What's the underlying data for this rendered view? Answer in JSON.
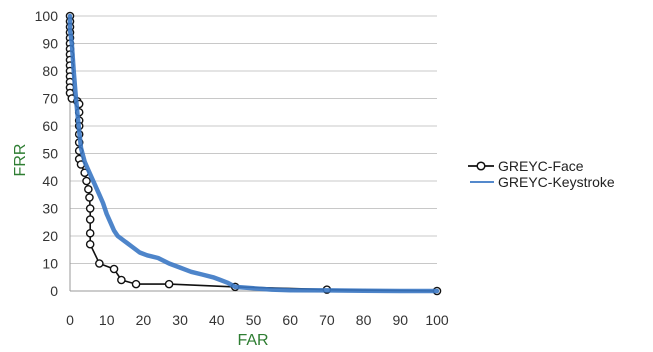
{
  "chart_data": {
    "type": "line",
    "title": "",
    "xlabel": "FAR",
    "ylabel": "FRR",
    "xlim": [
      0,
      100
    ],
    "ylim": [
      0,
      100
    ],
    "xticks": [
      0,
      10,
      20,
      30,
      40,
      50,
      60,
      70,
      80,
      90,
      100
    ],
    "yticks": [
      0,
      10,
      20,
      30,
      40,
      50,
      60,
      70,
      80,
      90,
      100
    ],
    "grid": "horizontal",
    "legend_position": "right",
    "series": [
      {
        "name": "GREYC-Face",
        "color": "#111111",
        "marker": "open-circle",
        "points": [
          [
            0,
            100
          ],
          [
            0,
            98
          ],
          [
            0,
            96
          ],
          [
            0,
            94
          ],
          [
            0,
            92
          ],
          [
            0,
            90
          ],
          [
            0,
            88
          ],
          [
            0,
            86
          ],
          [
            0,
            84
          ],
          [
            0,
            82
          ],
          [
            0,
            80
          ],
          [
            0,
            78
          ],
          [
            0,
            76
          ],
          [
            0,
            74
          ],
          [
            0,
            72
          ],
          [
            0.5,
            70
          ],
          [
            2,
            69
          ],
          [
            2.5,
            68
          ],
          [
            2.5,
            65
          ],
          [
            2.5,
            62
          ],
          [
            2.5,
            60
          ],
          [
            2.5,
            57
          ],
          [
            2.5,
            54
          ],
          [
            2.5,
            51
          ],
          [
            2.5,
            48
          ],
          [
            3,
            46
          ],
          [
            4,
            43
          ],
          [
            4.5,
            40
          ],
          [
            5,
            37
          ],
          [
            5.3,
            34
          ],
          [
            5.5,
            30
          ],
          [
            5.5,
            26
          ],
          [
            5.5,
            21
          ],
          [
            5.5,
            17
          ],
          [
            8,
            10
          ],
          [
            12,
            8
          ],
          [
            14,
            4
          ],
          [
            18,
            2.5
          ],
          [
            27,
            2.5
          ],
          [
            45,
            1.5
          ],
          [
            70,
            0.5
          ],
          [
            100,
            0
          ]
        ]
      },
      {
        "name": "GREYC-Keystroke",
        "color": "#3b78c4",
        "marker": "none",
        "points": [
          [
            0,
            100
          ],
          [
            0,
            95
          ],
          [
            0.5,
            90
          ],
          [
            1,
            80
          ],
          [
            1.5,
            72
          ],
          [
            2,
            65
          ],
          [
            2.5,
            58
          ],
          [
            3,
            52
          ],
          [
            4,
            47
          ],
          [
            5,
            44
          ],
          [
            6,
            41
          ],
          [
            7,
            38
          ],
          [
            8,
            35
          ],
          [
            9,
            32
          ],
          [
            10,
            28
          ],
          [
            11,
            25
          ],
          [
            12,
            22
          ],
          [
            13,
            20
          ],
          [
            15,
            18
          ],
          [
            17,
            16
          ],
          [
            19,
            14
          ],
          [
            21,
            13
          ],
          [
            24,
            12
          ],
          [
            27,
            10
          ],
          [
            30,
            8.5
          ],
          [
            33,
            7
          ],
          [
            36,
            6
          ],
          [
            39,
            5
          ],
          [
            41,
            4
          ],
          [
            43,
            3
          ],
          [
            45,
            1.5
          ],
          [
            50,
            1
          ],
          [
            55,
            0.5
          ],
          [
            60,
            0.3
          ],
          [
            70,
            0.2
          ],
          [
            80,
            0.1
          ],
          [
            90,
            0
          ],
          [
            100,
            0
          ]
        ]
      }
    ]
  }
}
